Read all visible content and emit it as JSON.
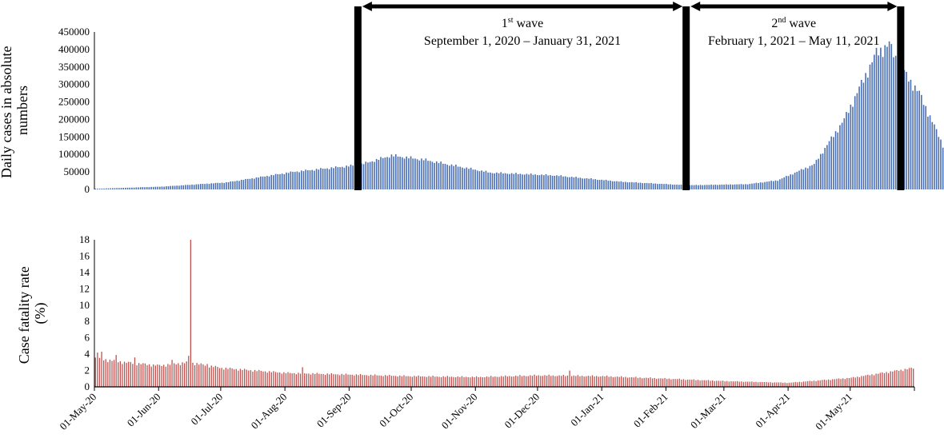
{
  "chart_data": [
    {
      "type": "bar",
      "id": "daily-cases",
      "ylabel_lines": [
        "Daily cases in absolute",
        "numbers"
      ],
      "ylim": [
        0,
        450000
      ],
      "yticks": [
        0,
        50000,
        100000,
        150000,
        200000,
        250000,
        300000,
        350000,
        400000,
        450000
      ],
      "ytick_labels": [
        "0",
        "50000",
        "100000",
        "150000",
        "200000",
        "250000",
        "300000",
        "350000",
        "400000",
        "450000"
      ],
      "color": "#4a6fb3",
      "start_date": "2020-05-01",
      "end_date": "2021-05-31",
      "anchors": [
        [
          "2020-05-01",
          2000
        ],
        [
          "2020-06-01",
          8000
        ],
        [
          "2020-07-01",
          20000
        ],
        [
          "2020-08-01",
          50000
        ],
        [
          "2020-09-01",
          70000
        ],
        [
          "2020-09-16",
          97000
        ],
        [
          "2020-10-01",
          85000
        ],
        [
          "2020-11-01",
          48000
        ],
        [
          "2020-12-01",
          40000
        ],
        [
          "2021-01-01",
          22000
        ],
        [
          "2021-02-01",
          12000
        ],
        [
          "2021-03-01",
          15000
        ],
        [
          "2021-03-15",
          26000
        ],
        [
          "2021-04-01",
          72000
        ],
        [
          "2021-04-15",
          200000
        ],
        [
          "2021-04-30",
          390000
        ],
        [
          "2021-05-06",
          414000
        ],
        [
          "2021-05-11",
          350000
        ],
        [
          "2021-05-20",
          275000
        ],
        [
          "2021-05-31",
          127000
        ]
      ],
      "waves": [
        {
          "title_base": "1",
          "title_sup": "st",
          "title_rest": " wave",
          "range": "September 1, 2020 – January 31, 2021",
          "start": "2020-09-01",
          "end": "2021-01-31"
        },
        {
          "title_base": "2",
          "title_sup": "nd",
          "title_rest": " wave",
          "range": "February 1, 2021 – May 11, 2021",
          "start": "2021-02-01",
          "end": "2021-05-11"
        }
      ]
    },
    {
      "type": "bar",
      "id": "case-fatality-rate",
      "ylabel_lines": [
        "Case fatality rate",
        "(%)"
      ],
      "ylim": [
        0,
        18
      ],
      "yticks": [
        0,
        2,
        4,
        6,
        8,
        10,
        12,
        14,
        16,
        18
      ],
      "ytick_labels": [
        "0",
        "2",
        "4",
        "6",
        "8",
        "10",
        "12",
        "14",
        "16",
        "18"
      ],
      "color": "#c0504d",
      "start_date": "2020-05-01",
      "end_date": "2021-05-31",
      "anchors": [
        [
          "2020-05-01",
          3.5
        ],
        [
          "2020-05-15",
          3.0
        ],
        [
          "2020-06-01",
          2.6
        ],
        [
          "2020-06-15",
          3.0
        ],
        [
          "2020-07-01",
          2.3
        ],
        [
          "2020-08-01",
          1.7
        ],
        [
          "2020-09-01",
          1.5
        ],
        [
          "2020-10-01",
          1.3
        ],
        [
          "2020-11-01",
          1.2
        ],
        [
          "2020-12-01",
          1.4
        ],
        [
          "2021-01-01",
          1.3
        ],
        [
          "2021-02-01",
          1.0
        ],
        [
          "2021-03-01",
          0.7
        ],
        [
          "2021-04-01",
          0.5
        ],
        [
          "2021-05-01",
          1.1
        ],
        [
          "2021-05-31",
          2.3
        ]
      ],
      "spikes": [
        [
          "2020-06-16",
          18.0
        ],
        [
          "2020-06-15",
          3.8
        ],
        [
          "2020-05-02",
          4.2
        ],
        [
          "2020-05-04",
          4.3
        ],
        [
          "2020-05-11",
          3.9
        ],
        [
          "2020-05-20",
          3.6
        ],
        [
          "2020-06-07",
          3.3
        ],
        [
          "2020-08-09",
          2.4
        ],
        [
          "2020-12-16",
          2.0
        ],
        [
          "2020-06-24",
          2.8
        ]
      ],
      "xtick_labels": [
        "01-May-20",
        "01-Jun-20",
        "01-Jul-20",
        "01-Aug-20",
        "01-Sep-20",
        "01-Oct-20",
        "01-Nov-20",
        "01-Dec-20",
        "01-Jan-21",
        "01-Feb-21",
        "01-Mar-21",
        "01-Apr-21",
        "01-May-21"
      ],
      "xtick_dates": [
        "2020-05-01",
        "2020-06-01",
        "2020-07-01",
        "2020-08-01",
        "2020-09-01",
        "2020-10-01",
        "2020-11-01",
        "2020-12-01",
        "2021-01-01",
        "2021-02-01",
        "2021-03-01",
        "2021-04-01",
        "2021-05-01"
      ]
    }
  ]
}
